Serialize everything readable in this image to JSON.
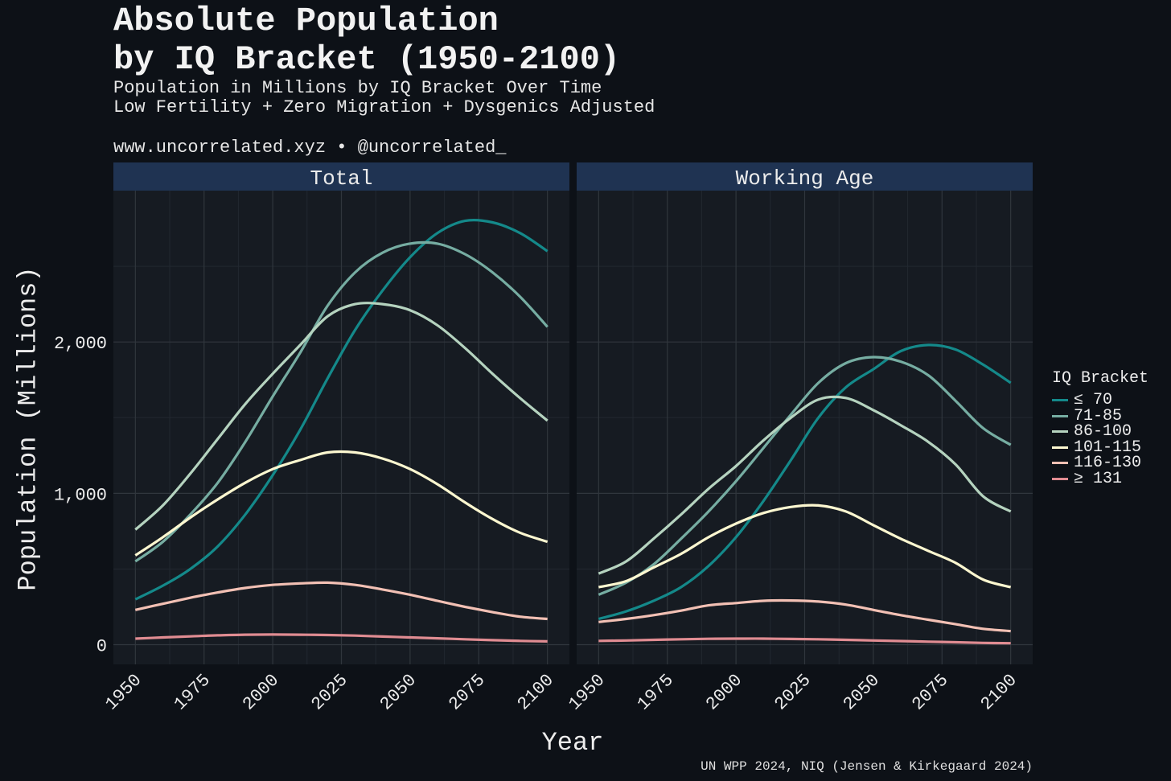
{
  "header": {
    "title": "Absolute Population\nby IQ Bracket (1950-2100)",
    "subtitle_line1": "Population in Millions by IQ Bracket Over Time",
    "subtitle_line2": "Low Fertility + Zero Migration + Dysgenics Adjusted",
    "credit": "www.uncorrelated.xyz • @uncorrelated_"
  },
  "caption": "UN WPP 2024, NIQ (Jensen & Kirkegaard 2024)",
  "chart_data": {
    "type": "line",
    "xlabel": "Year",
    "ylabel": "Population (Millions)",
    "xlim": [
      1942,
      2108
    ],
    "ylim": [
      -130,
      3000
    ],
    "x_ticks": [
      1950,
      1975,
      2000,
      2025,
      2050,
      2075,
      2100
    ],
    "y_ticks": [
      0,
      1000,
      2000
    ],
    "y_tick_labels": [
      "0",
      "1,000",
      "2,000"
    ],
    "grid": true,
    "legend": {
      "title": "IQ Bracket",
      "position": "right"
    },
    "series_meta": [
      {
        "name": "≤ 70",
        "color": "#14898a"
      },
      {
        "name": "71-85",
        "color": "#76ada2"
      },
      {
        "name": "86-100",
        "color": "#b5d3bf"
      },
      {
        "name": "101-115",
        "color": "#fcf7d0"
      },
      {
        "name": "116-130",
        "color": "#f2c0b4"
      },
      {
        "name": "≥ 131",
        "color": "#e08c92"
      }
    ],
    "panels": [
      {
        "title": "Total",
        "series": [
          {
            "name": "≤ 70",
            "x": [
              1950,
              1960,
              1970,
              1980,
              1990,
              2000,
              2010,
              2020,
              2030,
              2040,
              2050,
              2060,
              2070,
              2080,
              2090,
              2100
            ],
            "values": [
              300,
              390,
              500,
              650,
              860,
              1120,
              1420,
              1760,
              2080,
              2340,
              2560,
              2720,
              2800,
              2790,
              2720,
              2600
            ]
          },
          {
            "name": "71-85",
            "x": [
              1950,
              1960,
              1970,
              1980,
              1990,
              2000,
              2010,
              2020,
              2030,
              2040,
              2050,
              2060,
              2070,
              2080,
              2090,
              2100
            ],
            "values": [
              550,
              680,
              860,
              1070,
              1340,
              1640,
              1930,
              2240,
              2460,
              2590,
              2650,
              2650,
              2580,
              2460,
              2300,
              2100
            ]
          },
          {
            "name": "86-100",
            "x": [
              1950,
              1960,
              1970,
              1980,
              1990,
              2000,
              2010,
              2020,
              2030,
              2040,
              2050,
              2060,
              2070,
              2080,
              2090,
              2100
            ],
            "values": [
              760,
              920,
              1130,
              1360,
              1590,
              1790,
              1980,
              2170,
              2250,
              2250,
              2210,
              2110,
              1960,
              1790,
              1630,
              1480
            ]
          },
          {
            "name": "101-115",
            "x": [
              1950,
              1960,
              1970,
              1980,
              1990,
              2000,
              2010,
              2020,
              2030,
              2040,
              2050,
              2060,
              2070,
              2080,
              2090,
              2100
            ],
            "values": [
              590,
              710,
              840,
              960,
              1070,
              1160,
              1220,
              1270,
              1270,
              1230,
              1160,
              1060,
              940,
              830,
              740,
              680
            ]
          },
          {
            "name": "116-130",
            "x": [
              1950,
              1960,
              1970,
              1980,
              1990,
              2000,
              2010,
              2020,
              2030,
              2040,
              2050,
              2060,
              2070,
              2080,
              2090,
              2100
            ],
            "values": [
              230,
              270,
              310,
              345,
              375,
              395,
              405,
              410,
              395,
              365,
              330,
              290,
              250,
              215,
              185,
              170
            ]
          },
          {
            "name": "≥ 131",
            "x": [
              1950,
              1960,
              1970,
              1980,
              1990,
              2000,
              2010,
              2020,
              2030,
              2040,
              2050,
              2060,
              2070,
              2080,
              2090,
              2100
            ],
            "values": [
              40,
              48,
              55,
              62,
              66,
              67,
              66,
              64,
              60,
              54,
              48,
              42,
              36,
              30,
              25,
              22
            ]
          }
        ]
      },
      {
        "title": "Working Age",
        "series": [
          {
            "name": "≤ 70",
            "x": [
              1950,
              1960,
              1970,
              1980,
              1990,
              2000,
              2010,
              2020,
              2030,
              2040,
              2050,
              2060,
              2070,
              2080,
              2090,
              2100
            ],
            "values": [
              170,
              220,
              290,
              380,
              520,
              710,
              950,
              1220,
              1500,
              1700,
              1820,
              1940,
              1980,
              1950,
              1850,
              1730
            ]
          },
          {
            "name": "71-85",
            "x": [
              1950,
              1960,
              1970,
              1980,
              1990,
              2000,
              2010,
              2020,
              2030,
              2040,
              2050,
              2060,
              2070,
              2080,
              2090,
              2100
            ],
            "values": [
              330,
              410,
              530,
              700,
              880,
              1080,
              1300,
              1520,
              1730,
              1860,
              1900,
              1870,
              1780,
              1610,
              1430,
              1320
            ]
          },
          {
            "name": "86-100",
            "x": [
              1950,
              1960,
              1970,
              1980,
              1990,
              2000,
              2010,
              2020,
              2030,
              2040,
              2050,
              2060,
              2070,
              2080,
              2090,
              2100
            ],
            "values": [
              470,
              550,
              700,
              860,
              1030,
              1180,
              1350,
              1500,
              1620,
              1630,
              1550,
              1450,
              1340,
              1190,
              980,
              880
            ]
          },
          {
            "name": "101-115",
            "x": [
              1950,
              1960,
              1970,
              1980,
              1990,
              2000,
              2010,
              2020,
              2030,
              2040,
              2050,
              2060,
              2070,
              2080,
              2090,
              2100
            ],
            "values": [
              380,
              420,
              510,
              600,
              710,
              800,
              870,
              910,
              920,
              880,
              790,
              700,
              620,
              540,
              430,
              380
            ]
          },
          {
            "name": "116-130",
            "x": [
              1950,
              1960,
              1970,
              1980,
              1990,
              2000,
              2010,
              2020,
              2030,
              2040,
              2050,
              2060,
              2070,
              2080,
              2090,
              2100
            ],
            "values": [
              150,
              170,
              195,
              225,
              260,
              275,
              290,
              292,
              285,
              265,
              230,
              195,
              165,
              135,
              105,
              90
            ]
          },
          {
            "name": "≥ 131",
            "x": [
              1950,
              1960,
              1970,
              1980,
              1990,
              2000,
              2010,
              2020,
              2030,
              2040,
              2050,
              2060,
              2070,
              2080,
              2090,
              2100
            ],
            "values": [
              25,
              28,
              32,
              36,
              39,
              40,
              40,
              38,
              36,
              32,
              28,
              24,
              20,
              16,
              12,
              10
            ]
          }
        ]
      }
    ]
  }
}
